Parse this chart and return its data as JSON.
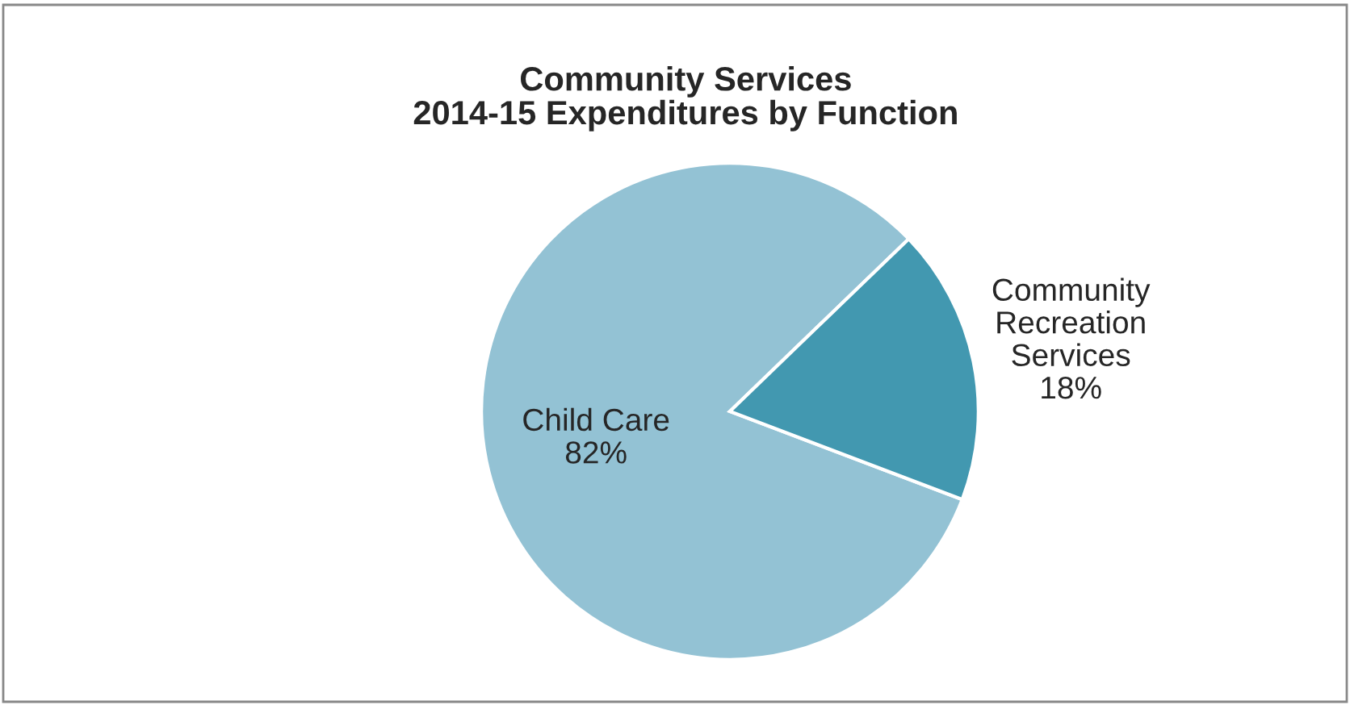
{
  "chart_data": {
    "type": "pie",
    "title": "Community Services\n2014-15 Expenditures by Function",
    "categories": [
      "Child Care",
      "Community\nRecreation\nServices"
    ],
    "values": [
      82,
      18
    ],
    "colors": [
      "#93c2d4",
      "#4298b0"
    ],
    "value_labels": [
      "82%",
      "18%"
    ]
  }
}
